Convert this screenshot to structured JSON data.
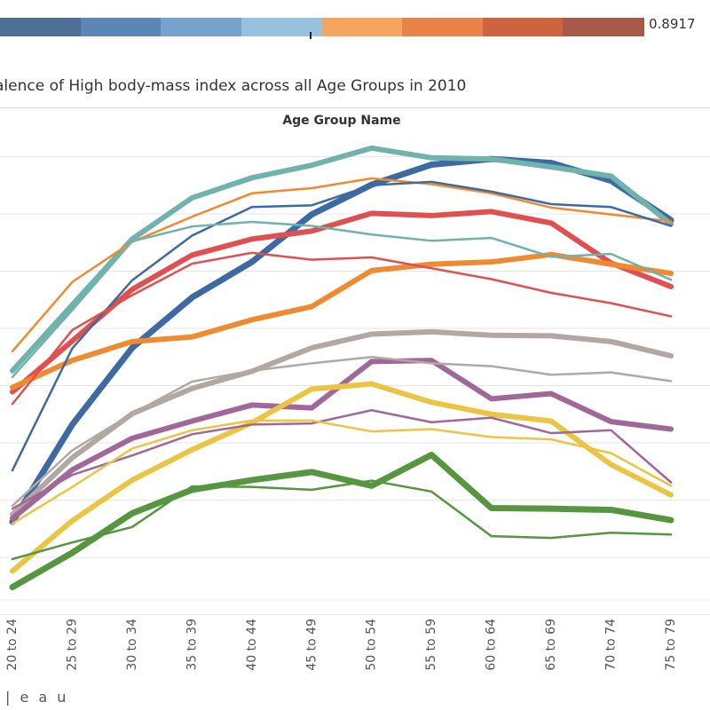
{
  "legend": {
    "max_label": "0.8917",
    "colors": [
      "#4e6f96",
      "#5b86b5",
      "#77a2cd",
      "#98c1e0",
      "#f7a45e",
      "#e9834a",
      "#d0633f",
      "#a85a48"
    ]
  },
  "title": "alence of High body-mass index across all Age Groups in 2010",
  "header_label": "Age Group Name",
  "footer_logo": "| e a u",
  "chart_data": {
    "type": "line",
    "title": "alence of High body-mass index across all Age Groups in 2010",
    "header": "Age Group Name",
    "categories": [
      "20 to 24",
      "25 to 29",
      "30 to 34",
      "35 to 39",
      "40 to 44",
      "45 to 49",
      "50 to 54",
      "55 to 59",
      "60 to 64",
      "65 to 69",
      "70 to 74",
      "75 to 79"
    ],
    "ylim": [
      0,
      100
    ],
    "grid": true,
    "y_axis_labels_visible": false,
    "series": [
      {
        "color": "#3d6aa2",
        "width": 7,
        "values": [
          26.2,
          43.2,
          56.6,
          65.4,
          71.6,
          79.9,
          85.1,
          88.6,
          89.6,
          88.9,
          85.8,
          78.9
        ]
      },
      {
        "color": "#6fb3ac",
        "width": 6,
        "values": [
          52.6,
          64.1,
          75.6,
          82.8,
          86.3,
          88.5,
          91.5,
          89.8,
          89.6,
          88.2,
          86.6,
          78.2
        ]
      },
      {
        "color": "#e05050",
        "width": 6,
        "values": [
          48.9,
          57.8,
          66.8,
          72.8,
          75.6,
          77.0,
          80.1,
          79.7,
          80.4,
          78.4,
          71.4,
          67.3
        ]
      },
      {
        "color": "#f08a30",
        "width": 6,
        "values": [
          49.7,
          54.4,
          57.7,
          58.5,
          61.5,
          63.8,
          70.1,
          71.2,
          71.6,
          72.9,
          71.2,
          69.6
        ]
      },
      {
        "color": "#b2a8a3",
        "width": 6,
        "values": [
          27.5,
          37.4,
          45.1,
          49.5,
          52.5,
          56.6,
          59.0,
          59.4,
          58.8,
          58.7,
          57.7,
          55.2
        ]
      },
      {
        "color": "#a26799",
        "width": 6,
        "values": [
          26.8,
          35.3,
          40.8,
          43.8,
          46.6,
          46.1,
          54.2,
          54.4,
          47.7,
          48.6,
          43.7,
          42.4
        ]
      },
      {
        "color": "#ecc443",
        "width": 6,
        "values": [
          17.6,
          26.4,
          33.5,
          38.8,
          43.5,
          49.4,
          50.3,
          47.1,
          45.0,
          43.8,
          36.2,
          30.9
        ]
      },
      {
        "color": "#56963f",
        "width": 7,
        "values": [
          14.8,
          20.8,
          27.7,
          31.8,
          33.5,
          34.9,
          32.5,
          37.9,
          28.6,
          28.5,
          28.3,
          26.5
        ]
      },
      {
        "color": "#f08a30",
        "width": 2.5,
        "values": [
          56.0,
          68.1,
          75.1,
          79.5,
          83.6,
          84.5,
          86.2,
          85.2,
          83.6,
          81.1,
          79.9,
          78.7
        ]
      },
      {
        "color": "#3d6aa2",
        "width": 2.5,
        "values": [
          35.2,
          56.5,
          68.4,
          76.2,
          81.2,
          81.5,
          85.0,
          85.6,
          83.9,
          81.7,
          81.2,
          77.9
        ]
      },
      {
        "color": "#6fb3ac",
        "width": 2.5,
        "values": [
          51.5,
          63.2,
          75.2,
          77.8,
          78.6,
          77.9,
          76.4,
          75.3,
          75.8,
          72.5,
          73.0,
          68.5
        ]
      },
      {
        "color": "#e05050",
        "width": 2.5,
        "values": [
          46.8,
          59.7,
          65.8,
          71.3,
          73.2,
          72.0,
          72.4,
          70.5,
          68.6,
          66.2,
          64.4,
          62.1
        ]
      },
      {
        "color": "#b2a8a3",
        "width": 2.5,
        "values": [
          29.0,
          38.7,
          45.1,
          50.7,
          52.6,
          53.9,
          55.0,
          53.9,
          53.4,
          51.9,
          52.3,
          50.8
        ]
      },
      {
        "color": "#a26799",
        "width": 2.5,
        "values": [
          28.5,
          34.4,
          37.8,
          41.5,
          43.2,
          43.4,
          45.7,
          43.6,
          44.4,
          41.7,
          42.2,
          33.1
        ]
      },
      {
        "color": "#ecc443",
        "width": 2.5,
        "values": [
          25.9,
          32.3,
          39.0,
          42.2,
          43.9,
          43.9,
          42.0,
          42.4,
          41.0,
          40.6,
          38.2,
          32.5
        ]
      },
      {
        "color": "#56963f",
        "width": 2.5,
        "values": [
          19.7,
          22.6,
          25.3,
          32.4,
          32.3,
          31.8,
          33.4,
          31.5,
          23.7,
          23.4,
          24.3,
          24.0
        ]
      }
    ]
  }
}
